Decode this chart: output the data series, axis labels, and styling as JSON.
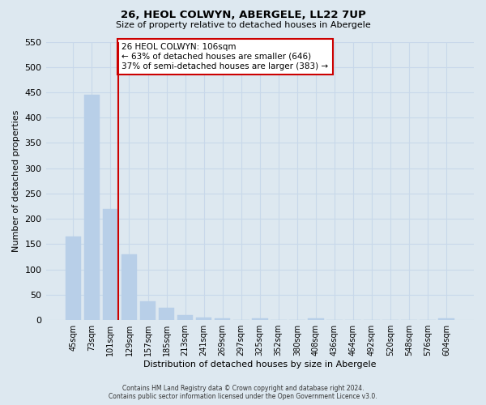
{
  "title": "26, HEOL COLWYN, ABERGELE, LL22 7UP",
  "subtitle": "Size of property relative to detached houses in Abergele",
  "xlabel": "Distribution of detached houses by size in Abergele",
  "ylabel": "Number of detached properties",
  "bar_labels": [
    "45sqm",
    "73sqm",
    "101sqm",
    "129sqm",
    "157sqm",
    "185sqm",
    "213sqm",
    "241sqm",
    "269sqm",
    "297sqm",
    "325sqm",
    "352sqm",
    "380sqm",
    "408sqm",
    "436sqm",
    "464sqm",
    "492sqm",
    "520sqm",
    "548sqm",
    "576sqm",
    "604sqm"
  ],
  "bar_values": [
    165,
    445,
    220,
    130,
    37,
    25,
    10,
    5,
    3,
    0,
    3,
    0,
    0,
    3,
    0,
    0,
    0,
    0,
    0,
    0,
    3
  ],
  "bar_color": "#b8cfe8",
  "bar_edge_color": "#b8cfe8",
  "grid_color": "#c8d8ea",
  "background_color": "#dde8f0",
  "vline_color": "#cc0000",
  "ylim": [
    0,
    550
  ],
  "yticks": [
    0,
    50,
    100,
    150,
    200,
    250,
    300,
    350,
    400,
    450,
    500,
    550
  ],
  "annotation_title": "26 HEOL COLWYN: 106sqm",
  "annotation_line1": "← 63% of detached houses are smaller (646)",
  "annotation_line2": "37% of semi-detached houses are larger (383) →",
  "annotation_box_color": "#ffffff",
  "annotation_border_color": "#cc0000",
  "footer_line1": "Contains HM Land Registry data © Crown copyright and database right 2024.",
  "footer_line2": "Contains public sector information licensed under the Open Government Licence v3.0."
}
